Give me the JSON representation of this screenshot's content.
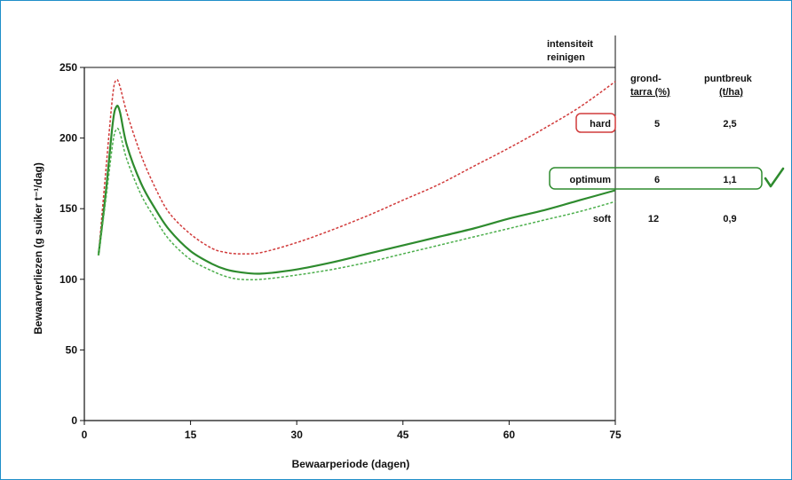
{
  "chart_data": {
    "type": "line",
    "xlabel": "Bewaarperiode (dagen)",
    "ylabel": "Bewaarverliezen (g suiker t⁻¹/dag)",
    "xlim": [
      0,
      75
    ],
    "ylim": [
      0,
      250
    ],
    "x_ticks": [
      "0",
      "15",
      "30",
      "45",
      "60",
      "75"
    ],
    "y_ticks": [
      "0",
      "50",
      "100",
      "150",
      "200",
      "250"
    ],
    "grid": false,
    "series": [
      {
        "name": "hard",
        "style": "dashed",
        "color": "#d13b3b",
        "x": [
          2,
          3,
          4,
          4.5,
          5,
          6,
          8,
          10,
          12,
          15,
          18,
          20,
          22,
          25,
          30,
          35,
          40,
          45,
          50,
          55,
          60,
          65,
          70,
          75
        ],
        "y": [
          117,
          175,
          230,
          241,
          237,
          218,
          188,
          165,
          147,
          132,
          122,
          119,
          118,
          119,
          126,
          135,
          145,
          156,
          167,
          180,
          193,
          207,
          222,
          240
        ]
      },
      {
        "name": "optimum",
        "style": "solid",
        "color": "#2e8b2e",
        "x": [
          2,
          3,
          4,
          4.5,
          5,
          6,
          8,
          10,
          12,
          15,
          18,
          20,
          22,
          25,
          30,
          35,
          40,
          45,
          50,
          55,
          60,
          65,
          70,
          75
        ],
        "y": [
          117,
          160,
          210,
          222,
          219,
          195,
          168,
          150,
          135,
          120,
          111,
          107,
          105,
          104,
          107,
          112,
          118,
          124,
          130,
          136,
          143,
          149,
          156,
          163
        ]
      },
      {
        "name": "soft",
        "style": "dashed",
        "color": "#4caf4c",
        "x": [
          2,
          3,
          4,
          4.5,
          5,
          6,
          8,
          10,
          12,
          15,
          18,
          20,
          22,
          25,
          30,
          35,
          40,
          45,
          50,
          55,
          60,
          65,
          70,
          75
        ],
        "y": [
          117,
          155,
          196,
          206,
          204,
          185,
          160,
          143,
          128,
          114,
          106,
          102,
          100,
          100,
          103,
          107,
          112,
          118,
          124,
          130,
          136,
          142,
          148,
          155
        ]
      }
    ]
  },
  "table": {
    "heading": [
      "intensiteit",
      "reinigen"
    ],
    "col1_header": [
      "grond-",
      "tarra (%)"
    ],
    "col2_header": [
      "puntbreuk",
      "(t/ha)"
    ],
    "rows": [
      {
        "label": "hard",
        "grondtarra": "5",
        "puntbreuk": "2,5",
        "color": "#d13b3b"
      },
      {
        "label": "optimum",
        "grondtarra": "6",
        "puntbreuk": "1,1",
        "color": "#2e8b2e"
      },
      {
        "label": "soft",
        "grondtarra": "12",
        "puntbreuk": "0,9",
        "color": "#111111"
      }
    ],
    "checkmark": "✓"
  },
  "colors": {
    "frame": "#1f8ec9",
    "axis": "#111111",
    "hard": "#d13b3b",
    "optimum": "#2e8b2e",
    "soft": "#4caf4c"
  }
}
